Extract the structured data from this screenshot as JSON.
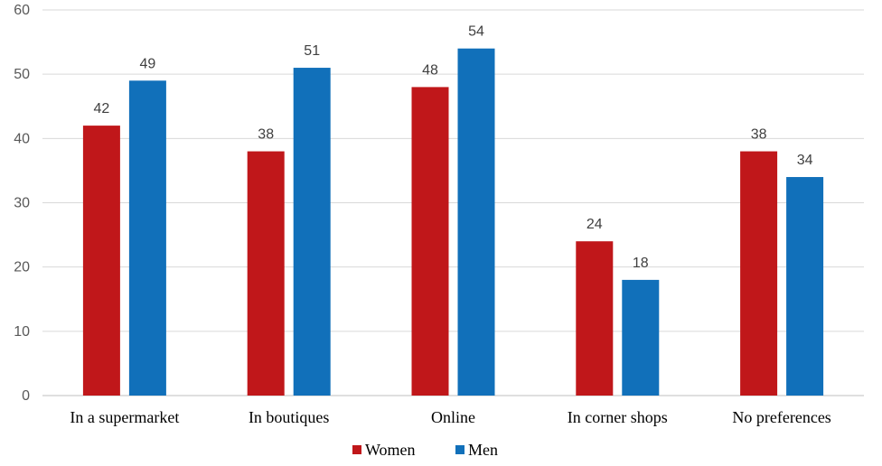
{
  "chart_data": {
    "type": "bar",
    "title": "",
    "xlabel": "",
    "ylabel": "",
    "categories": [
      "In a supermarket",
      "In boutiques",
      "Online",
      "In corner shops",
      "No preferences"
    ],
    "series": [
      {
        "name": "Women",
        "color": "#C0171A",
        "values": [
          42,
          38,
          48,
          24,
          38
        ]
      },
      {
        "name": "Men",
        "color": "#1170BA",
        "values": [
          49,
          51,
          54,
          18,
          34
        ]
      }
    ],
    "ylim": [
      0,
      60
    ],
    "yticks": [
      0,
      10,
      20,
      30,
      40,
      50,
      60
    ],
    "grid": true,
    "legend": "bottom-center",
    "data_labels": true
  }
}
